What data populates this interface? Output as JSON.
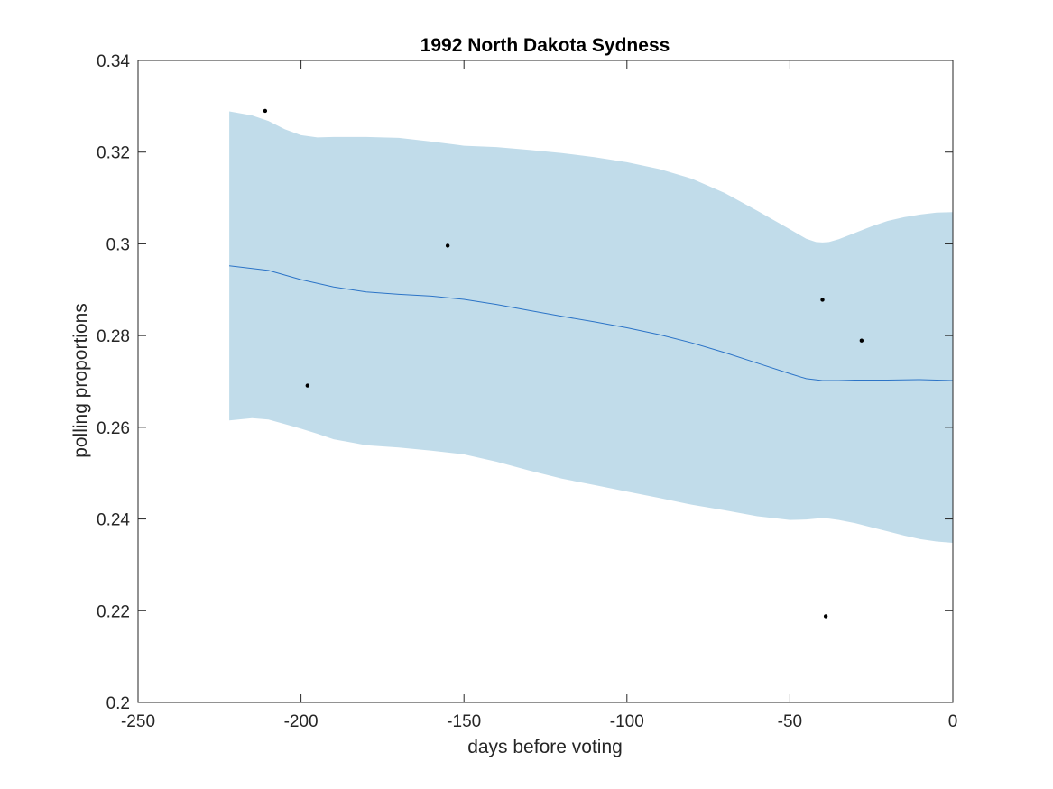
{
  "chart_data": {
    "type": "line",
    "title": "1992 North Dakota Sydness",
    "xlabel": "days before voting",
    "ylabel": "polling proportions",
    "xlim": [
      -250,
      0
    ],
    "ylim": [
      0.2,
      0.34
    ],
    "x_ticks": [
      -250,
      -200,
      -150,
      -100,
      -50,
      0
    ],
    "y_ticks": [
      0.2,
      0.22,
      0.24,
      0.26,
      0.28,
      0.3,
      0.32,
      0.34
    ],
    "x_tick_labels": [
      "-250",
      "-200",
      "-150",
      "-100",
      "-50",
      "0"
    ],
    "y_tick_labels": [
      "0.2",
      "0.22",
      "0.24",
      "0.26",
      "0.28",
      "0.3",
      "0.32",
      "0.34"
    ],
    "grid": false,
    "trend": {
      "x": [
        -222,
        -210,
        -200,
        -190,
        -180,
        -170,
        -160,
        -150,
        -140,
        -130,
        -120,
        -110,
        -100,
        -90,
        -80,
        -70,
        -60,
        -50,
        -45,
        -40,
        -35,
        -30,
        -20,
        -10,
        0
      ],
      "y": [
        0.2952,
        0.2942,
        0.2922,
        0.2906,
        0.2895,
        0.289,
        0.2886,
        0.2879,
        0.2868,
        0.2855,
        0.2842,
        0.283,
        0.2817,
        0.2802,
        0.2784,
        0.2763,
        0.274,
        0.2717,
        0.2706,
        0.2702,
        0.2702,
        0.2703,
        0.2703,
        0.2704,
        0.2702
      ]
    },
    "band": {
      "x": [
        -222,
        -215,
        -210,
        -205,
        -200,
        -195,
        -190,
        -180,
        -170,
        -160,
        -150,
        -140,
        -130,
        -120,
        -110,
        -100,
        -90,
        -80,
        -70,
        -60,
        -50,
        -45,
        -42,
        -40,
        -38,
        -35,
        -30,
        -25,
        -20,
        -15,
        -10,
        -5,
        0
      ],
      "upper": [
        0.3289,
        0.328,
        0.3268,
        0.325,
        0.3237,
        0.3232,
        0.3233,
        0.3233,
        0.3231,
        0.3223,
        0.3214,
        0.3211,
        0.3205,
        0.3198,
        0.3189,
        0.3178,
        0.3163,
        0.3142,
        0.3111,
        0.3072,
        0.3032,
        0.3011,
        0.3004,
        0.3003,
        0.3004,
        0.301,
        0.3024,
        0.3038,
        0.305,
        0.3058,
        0.3064,
        0.3068,
        0.3069
      ],
      "lower": [
        0.2615,
        0.262,
        0.2617,
        0.2607,
        0.2597,
        0.2586,
        0.2574,
        0.2561,
        0.2556,
        0.2549,
        0.2541,
        0.2525,
        0.2506,
        0.2488,
        0.2474,
        0.246,
        0.2446,
        0.2431,
        0.2419,
        0.2406,
        0.2398,
        0.2399,
        0.2401,
        0.2402,
        0.2401,
        0.2398,
        0.2391,
        0.2382,
        0.2373,
        0.2364,
        0.2356,
        0.2351,
        0.2348
      ]
    },
    "points": [
      {
        "x": -211,
        "y": 0.329
      },
      {
        "x": -198,
        "y": 0.2691
      },
      {
        "x": -155,
        "y": 0.2996
      },
      {
        "x": -40,
        "y": 0.2878
      },
      {
        "x": -39,
        "y": 0.2188
      },
      {
        "x": -28,
        "y": 0.2789
      }
    ],
    "colors": {
      "band": "#c1dcea",
      "trend": "#2c74c7",
      "points": "#000000",
      "axes": "#262626"
    }
  }
}
